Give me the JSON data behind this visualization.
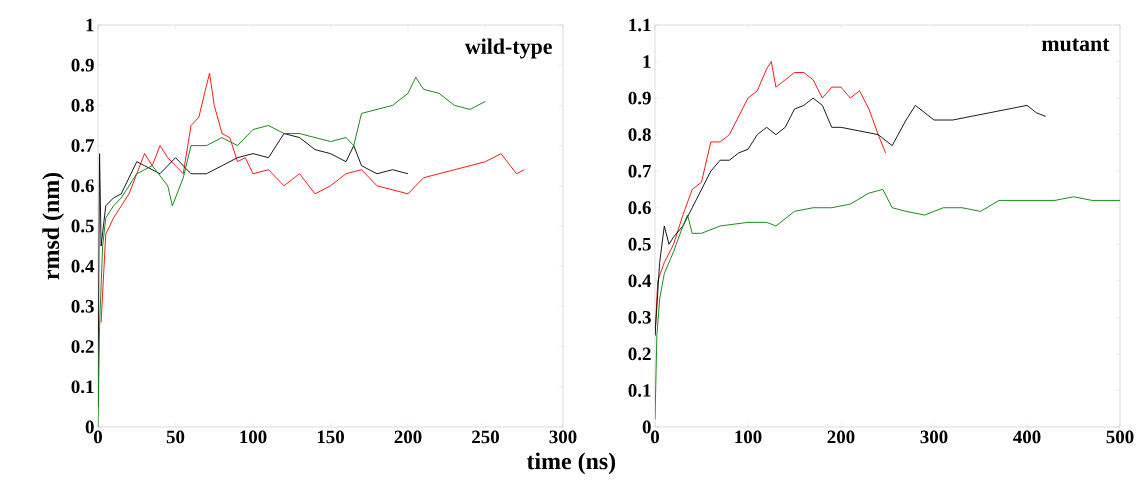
{
  "chart_data": [
    {
      "type": "line",
      "ylabel": "rmsd (nm)",
      "annotations": [
        "wild-type"
      ],
      "xlim": [
        0,
        300
      ],
      "ylim": [
        0,
        1
      ],
      "xticks": [
        0,
        50,
        100,
        150,
        200,
        250,
        300
      ],
      "yticks": [
        0,
        0.1,
        0.2,
        0.3,
        0.4,
        0.5,
        0.6,
        0.7,
        0.8,
        0.9,
        1
      ],
      "grid": false,
      "series": [
        {
          "color": "#ff0000",
          "x": [
            2,
            5,
            10,
            15,
            20,
            25,
            30,
            35,
            40,
            45,
            50,
            55,
            60,
            65,
            70,
            72,
            75,
            80,
            85,
            90,
            95,
            100,
            110,
            120,
            130,
            140,
            150,
            160,
            170,
            180,
            190,
            200,
            210,
            220,
            230,
            240,
            250,
            260,
            270,
            275
          ],
          "values": [
            0.26,
            0.48,
            0.52,
            0.55,
            0.58,
            0.63,
            0.68,
            0.65,
            0.7,
            0.67,
            0.65,
            0.63,
            0.75,
            0.77,
            0.85,
            0.88,
            0.8,
            0.73,
            0.72,
            0.66,
            0.67,
            0.63,
            0.64,
            0.6,
            0.63,
            0.58,
            0.6,
            0.63,
            0.64,
            0.6,
            0.59,
            0.58,
            0.62,
            0.63,
            0.64,
            0.65,
            0.66,
            0.68,
            0.63,
            0.64
          ]
        },
        {
          "color": "#000000",
          "x": [
            0,
            1,
            2,
            5,
            10,
            15,
            20,
            25,
            30,
            40,
            45,
            50,
            60,
            70,
            80,
            90,
            100,
            110,
            120,
            130,
            140,
            150,
            160,
            165,
            170,
            180,
            190,
            200
          ],
          "values": [
            0.05,
            0.68,
            0.45,
            0.55,
            0.57,
            0.58,
            0.62,
            0.66,
            0.65,
            0.63,
            0.65,
            0.67,
            0.63,
            0.63,
            0.65,
            0.67,
            0.68,
            0.67,
            0.73,
            0.72,
            0.69,
            0.68,
            0.66,
            0.7,
            0.65,
            0.63,
            0.64,
            0.63
          ]
        },
        {
          "color": "#008000",
          "x": [
            0,
            1,
            3,
            5,
            10,
            15,
            20,
            25,
            35,
            45,
            48,
            55,
            60,
            70,
            80,
            90,
            100,
            110,
            120,
            130,
            140,
            150,
            160,
            165,
            170,
            180,
            190,
            200,
            205,
            210,
            220,
            230,
            240,
            250
          ],
          "values": [
            0,
            0.25,
            0.45,
            0.52,
            0.55,
            0.57,
            0.6,
            0.63,
            0.65,
            0.6,
            0.55,
            0.62,
            0.7,
            0.7,
            0.72,
            0.7,
            0.74,
            0.75,
            0.73,
            0.73,
            0.72,
            0.71,
            0.72,
            0.7,
            0.78,
            0.79,
            0.8,
            0.83,
            0.87,
            0.84,
            0.83,
            0.8,
            0.79,
            0.81
          ]
        }
      ]
    },
    {
      "type": "line",
      "xlabel": "time (ns)",
      "annotations": [
        "mutant"
      ],
      "xlim": [
        0,
        500
      ],
      "ylim": [
        0,
        1.1
      ],
      "xticks": [
        0,
        100,
        200,
        300,
        400,
        500
      ],
      "yticks": [
        0,
        0.1,
        0.2,
        0.3,
        0.4,
        0.5,
        0.6,
        0.7,
        0.8,
        0.9,
        1,
        1.1
      ],
      "grid": false,
      "series": [
        {
          "color": "#ff0000",
          "x": [
            0,
            3,
            10,
            20,
            30,
            40,
            50,
            60,
            70,
            80,
            90,
            100,
            110,
            120,
            125,
            130,
            140,
            150,
            160,
            170,
            180,
            190,
            200,
            210,
            220,
            230,
            240,
            248
          ],
          "values": [
            0.25,
            0.4,
            0.45,
            0.5,
            0.58,
            0.65,
            0.67,
            0.78,
            0.78,
            0.8,
            0.85,
            0.9,
            0.92,
            0.98,
            1.0,
            0.93,
            0.95,
            0.97,
            0.97,
            0.95,
            0.9,
            0.93,
            0.93,
            0.9,
            0.92,
            0.87,
            0.8,
            0.75
          ]
        },
        {
          "color": "#000000",
          "x": [
            0,
            5,
            10,
            15,
            20,
            30,
            40,
            50,
            60,
            70,
            80,
            90,
            100,
            110,
            120,
            130,
            140,
            150,
            160,
            170,
            180,
            190,
            200,
            220,
            240,
            255,
            270,
            280,
            290,
            300,
            320,
            340,
            360,
            380,
            400,
            410,
            420
          ],
          "values": [
            0.25,
            0.45,
            0.55,
            0.5,
            0.52,
            0.55,
            0.6,
            0.65,
            0.7,
            0.73,
            0.73,
            0.75,
            0.76,
            0.8,
            0.82,
            0.8,
            0.82,
            0.87,
            0.88,
            0.9,
            0.88,
            0.82,
            0.82,
            0.81,
            0.8,
            0.77,
            0.84,
            0.88,
            0.86,
            0.84,
            0.84,
            0.85,
            0.86,
            0.87,
            0.88,
            0.86,
            0.85
          ]
        },
        {
          "color": "#008000",
          "x": [
            0,
            2,
            5,
            10,
            20,
            30,
            35,
            40,
            50,
            70,
            100,
            120,
            130,
            150,
            170,
            190,
            210,
            230,
            245,
            255,
            270,
            290,
            310,
            330,
            350,
            370,
            390,
            410,
            430,
            450,
            470,
            500
          ],
          "values": [
            0.02,
            0.25,
            0.35,
            0.42,
            0.48,
            0.55,
            0.58,
            0.53,
            0.53,
            0.55,
            0.56,
            0.56,
            0.55,
            0.59,
            0.6,
            0.6,
            0.61,
            0.64,
            0.65,
            0.6,
            0.59,
            0.58,
            0.6,
            0.6,
            0.59,
            0.62,
            0.62,
            0.62,
            0.62,
            0.63,
            0.62,
            0.62
          ]
        }
      ]
    }
  ]
}
